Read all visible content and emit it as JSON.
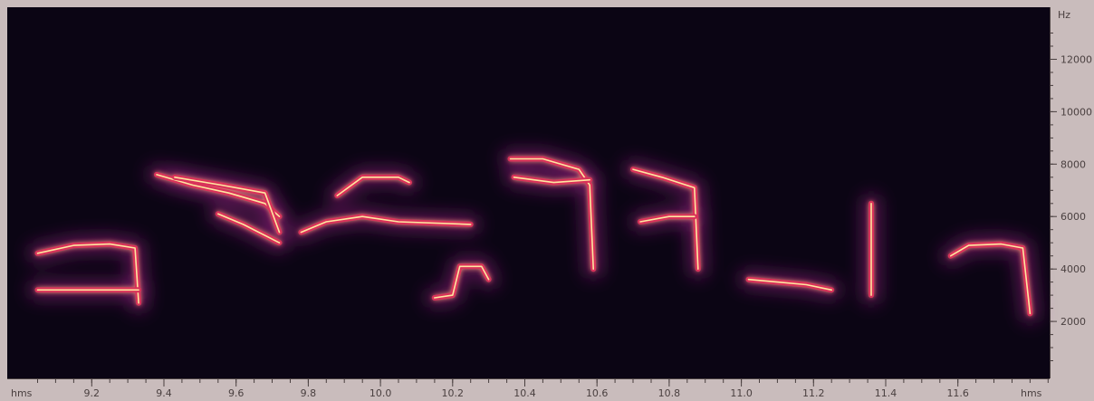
{
  "chart_data": {
    "type": "heatmap",
    "title": "",
    "xlabel": "hms",
    "ylabel": "Hz",
    "x_unit_left": "hms",
    "x_unit_right": "hms",
    "xlim": [
      9.05,
      12.0
    ],
    "ylim": [
      0,
      13000
    ],
    "x_ticks": [
      9.2,
      9.4,
      9.6,
      9.8,
      10.0,
      10.2,
      10.4,
      10.6,
      10.8,
      11.0,
      11.2,
      11.4,
      11.6
    ],
    "x_tick_labels": [
      "9.2",
      "9.4",
      "9.6",
      "9.8",
      "10.0",
      "10.2",
      "10.4",
      "10.6",
      "10.8",
      "11.0",
      "11.2",
      "11.4",
      "11.6"
    ],
    "y_ticks": [
      2000,
      4000,
      6000,
      8000,
      10000,
      12000
    ],
    "y_tick_labels": [
      "2000",
      "4000",
      "6000",
      "8000",
      "10000",
      "12000"
    ],
    "colormap": [
      "#0b0514",
      "#3a0c50",
      "#8a1f7a",
      "#d8335a",
      "#f57a2e",
      "#ffe6a0"
    ],
    "background_color": "#0b0514",
    "frame_color": "#c9bcbc",
    "series": [
      {
        "values": [
          [
            9.05,
            4600
          ],
          [
            9.15,
            4900
          ],
          [
            9.25,
            4950
          ],
          [
            9.32,
            4800
          ],
          [
            9.33,
            2700
          ]
        ]
      },
      {
        "values": [
          [
            9.05,
            3200
          ],
          [
            9.33,
            3200
          ]
        ]
      },
      {
        "values": [
          [
            9.38,
            7600
          ],
          [
            9.48,
            7200
          ],
          [
            9.58,
            6900
          ],
          [
            9.68,
            6500
          ],
          [
            9.72,
            6000
          ]
        ]
      },
      {
        "values": [
          [
            9.43,
            7500
          ],
          [
            9.56,
            7200
          ],
          [
            9.68,
            6900
          ],
          [
            9.72,
            5400
          ]
        ]
      },
      {
        "values": [
          [
            9.55,
            6100
          ],
          [
            9.62,
            5700
          ],
          [
            9.72,
            5000
          ]
        ]
      },
      {
        "values": [
          [
            9.78,
            5400
          ],
          [
            9.85,
            5800
          ],
          [
            9.95,
            6000
          ],
          [
            10.05,
            5800
          ],
          [
            10.25,
            5700
          ]
        ]
      },
      {
        "values": [
          [
            9.88,
            6800
          ],
          [
            9.95,
            7500
          ],
          [
            10.05,
            7500
          ],
          [
            10.08,
            7300
          ]
        ]
      },
      {
        "values": [
          [
            10.15,
            2900
          ],
          [
            10.2,
            3000
          ],
          [
            10.22,
            4100
          ],
          [
            10.28,
            4100
          ],
          [
            10.3,
            3600
          ]
        ]
      },
      {
        "values": [
          [
            10.36,
            8200
          ],
          [
            10.45,
            8200
          ],
          [
            10.55,
            7800
          ],
          [
            10.58,
            7200
          ],
          [
            10.59,
            4000
          ]
        ]
      },
      {
        "values": [
          [
            10.37,
            7500
          ],
          [
            10.48,
            7300
          ],
          [
            10.58,
            7400
          ]
        ]
      },
      {
        "values": [
          [
            10.7,
            7800
          ],
          [
            10.78,
            7500
          ],
          [
            10.87,
            7100
          ],
          [
            10.88,
            4000
          ]
        ]
      },
      {
        "values": [
          [
            10.72,
            5800
          ],
          [
            10.8,
            6000
          ],
          [
            10.87,
            6000
          ]
        ]
      },
      {
        "values": [
          [
            11.02,
            3600
          ],
          [
            11.1,
            3500
          ],
          [
            11.18,
            3400
          ],
          [
            11.25,
            3200
          ]
        ]
      },
      {
        "values": [
          [
            11.58,
            4500
          ],
          [
            11.63,
            4900
          ],
          [
            11.72,
            4950
          ],
          [
            11.78,
            4800
          ],
          [
            11.8,
            2300
          ]
        ]
      },
      {
        "values": [
          [
            11.36,
            6500
          ],
          [
            11.36,
            3000
          ]
        ]
      }
    ]
  }
}
